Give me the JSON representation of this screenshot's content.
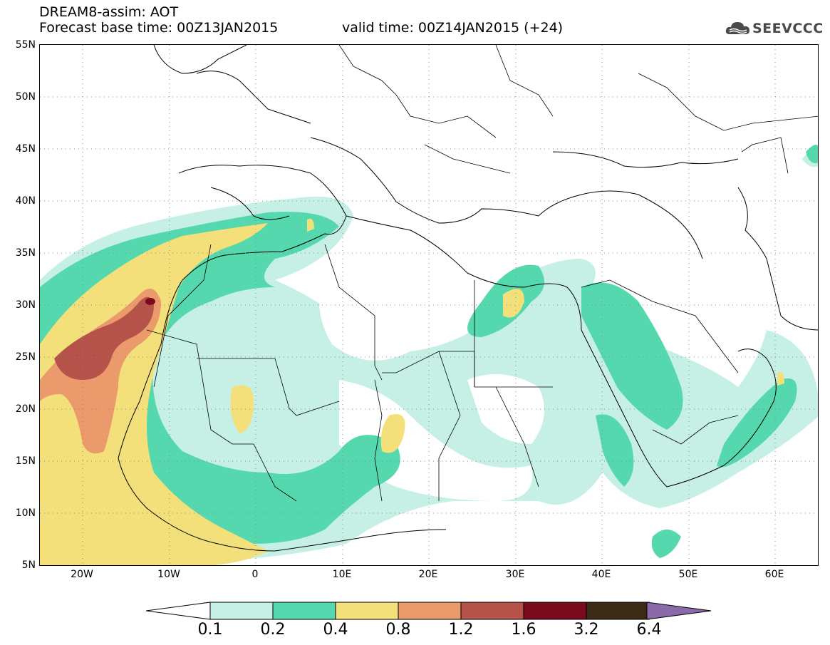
{
  "header": {
    "title": "DREAM8-assim: AOT",
    "base_time": "Forecast base time: 00Z13JAN2015",
    "valid_time": "valid time: 00Z14JAN2015 (+24)",
    "logo_text": "SEEVCCC"
  },
  "map": {
    "lon_range": [
      -25,
      65
    ],
    "lat_range": [
      5,
      55
    ],
    "lat_ticks": [
      "55N",
      "50N",
      "45N",
      "40N",
      "35N",
      "30N",
      "25N",
      "20N",
      "15N",
      "10N",
      "5N"
    ],
    "lon_ticks": [
      "20W",
      "10W",
      "0",
      "10E",
      "20E",
      "30E",
      "40E",
      "50E",
      "60E"
    ],
    "gridlines": "dotted"
  },
  "colorbar": {
    "labels": [
      "0.1",
      "0.2",
      "0.4",
      "0.8",
      "1.2",
      "1.6",
      "3.2",
      "6.4"
    ],
    "colors": [
      "#c6f0e6",
      "#55d8ae",
      "#f3e07a",
      "#ea9a6b",
      "#b5524a",
      "#7a0a1e",
      "#3a2a16",
      "#8a6aa8"
    ]
  }
}
